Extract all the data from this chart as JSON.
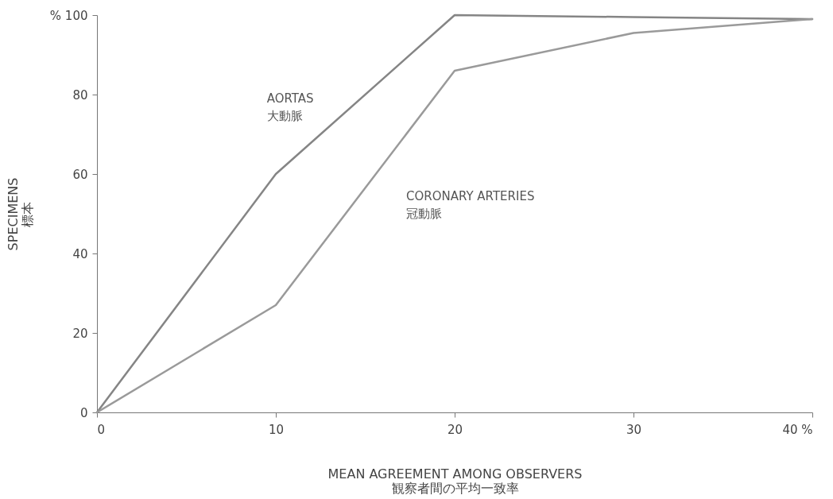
{
  "chart_data": {
    "type": "line",
    "xlabel": "MEAN AGREEMENT AMONG OBSERVERS\n観察者間の平均一致率",
    "ylabel": "SPECIMENS\n標本",
    "x": [
      0,
      10,
      20,
      30,
      40
    ],
    "series": [
      {
        "name": "AORTAS\n大動脈",
        "color": "#858585",
        "values": [
          0,
          60,
          100,
          99.5,
          99
        ]
      },
      {
        "name": "CORONARY ARTERIES\n冠動脈",
        "color": "#9a9a9a",
        "values": [
          0,
          27,
          86,
          95.5,
          99
        ]
      }
    ],
    "xlim": [
      0,
      40
    ],
    "xticks": [
      0,
      10,
      20,
      30,
      {
        "value": 40,
        "label": "40 %"
      }
    ],
    "ylim": [
      0,
      100
    ],
    "yticks": [
      0,
      20,
      40,
      60,
      80,
      {
        "value": 100,
        "label": "% 100"
      }
    ],
    "grid": false,
    "legend": false,
    "marker": "none",
    "line_style": "solid"
  }
}
